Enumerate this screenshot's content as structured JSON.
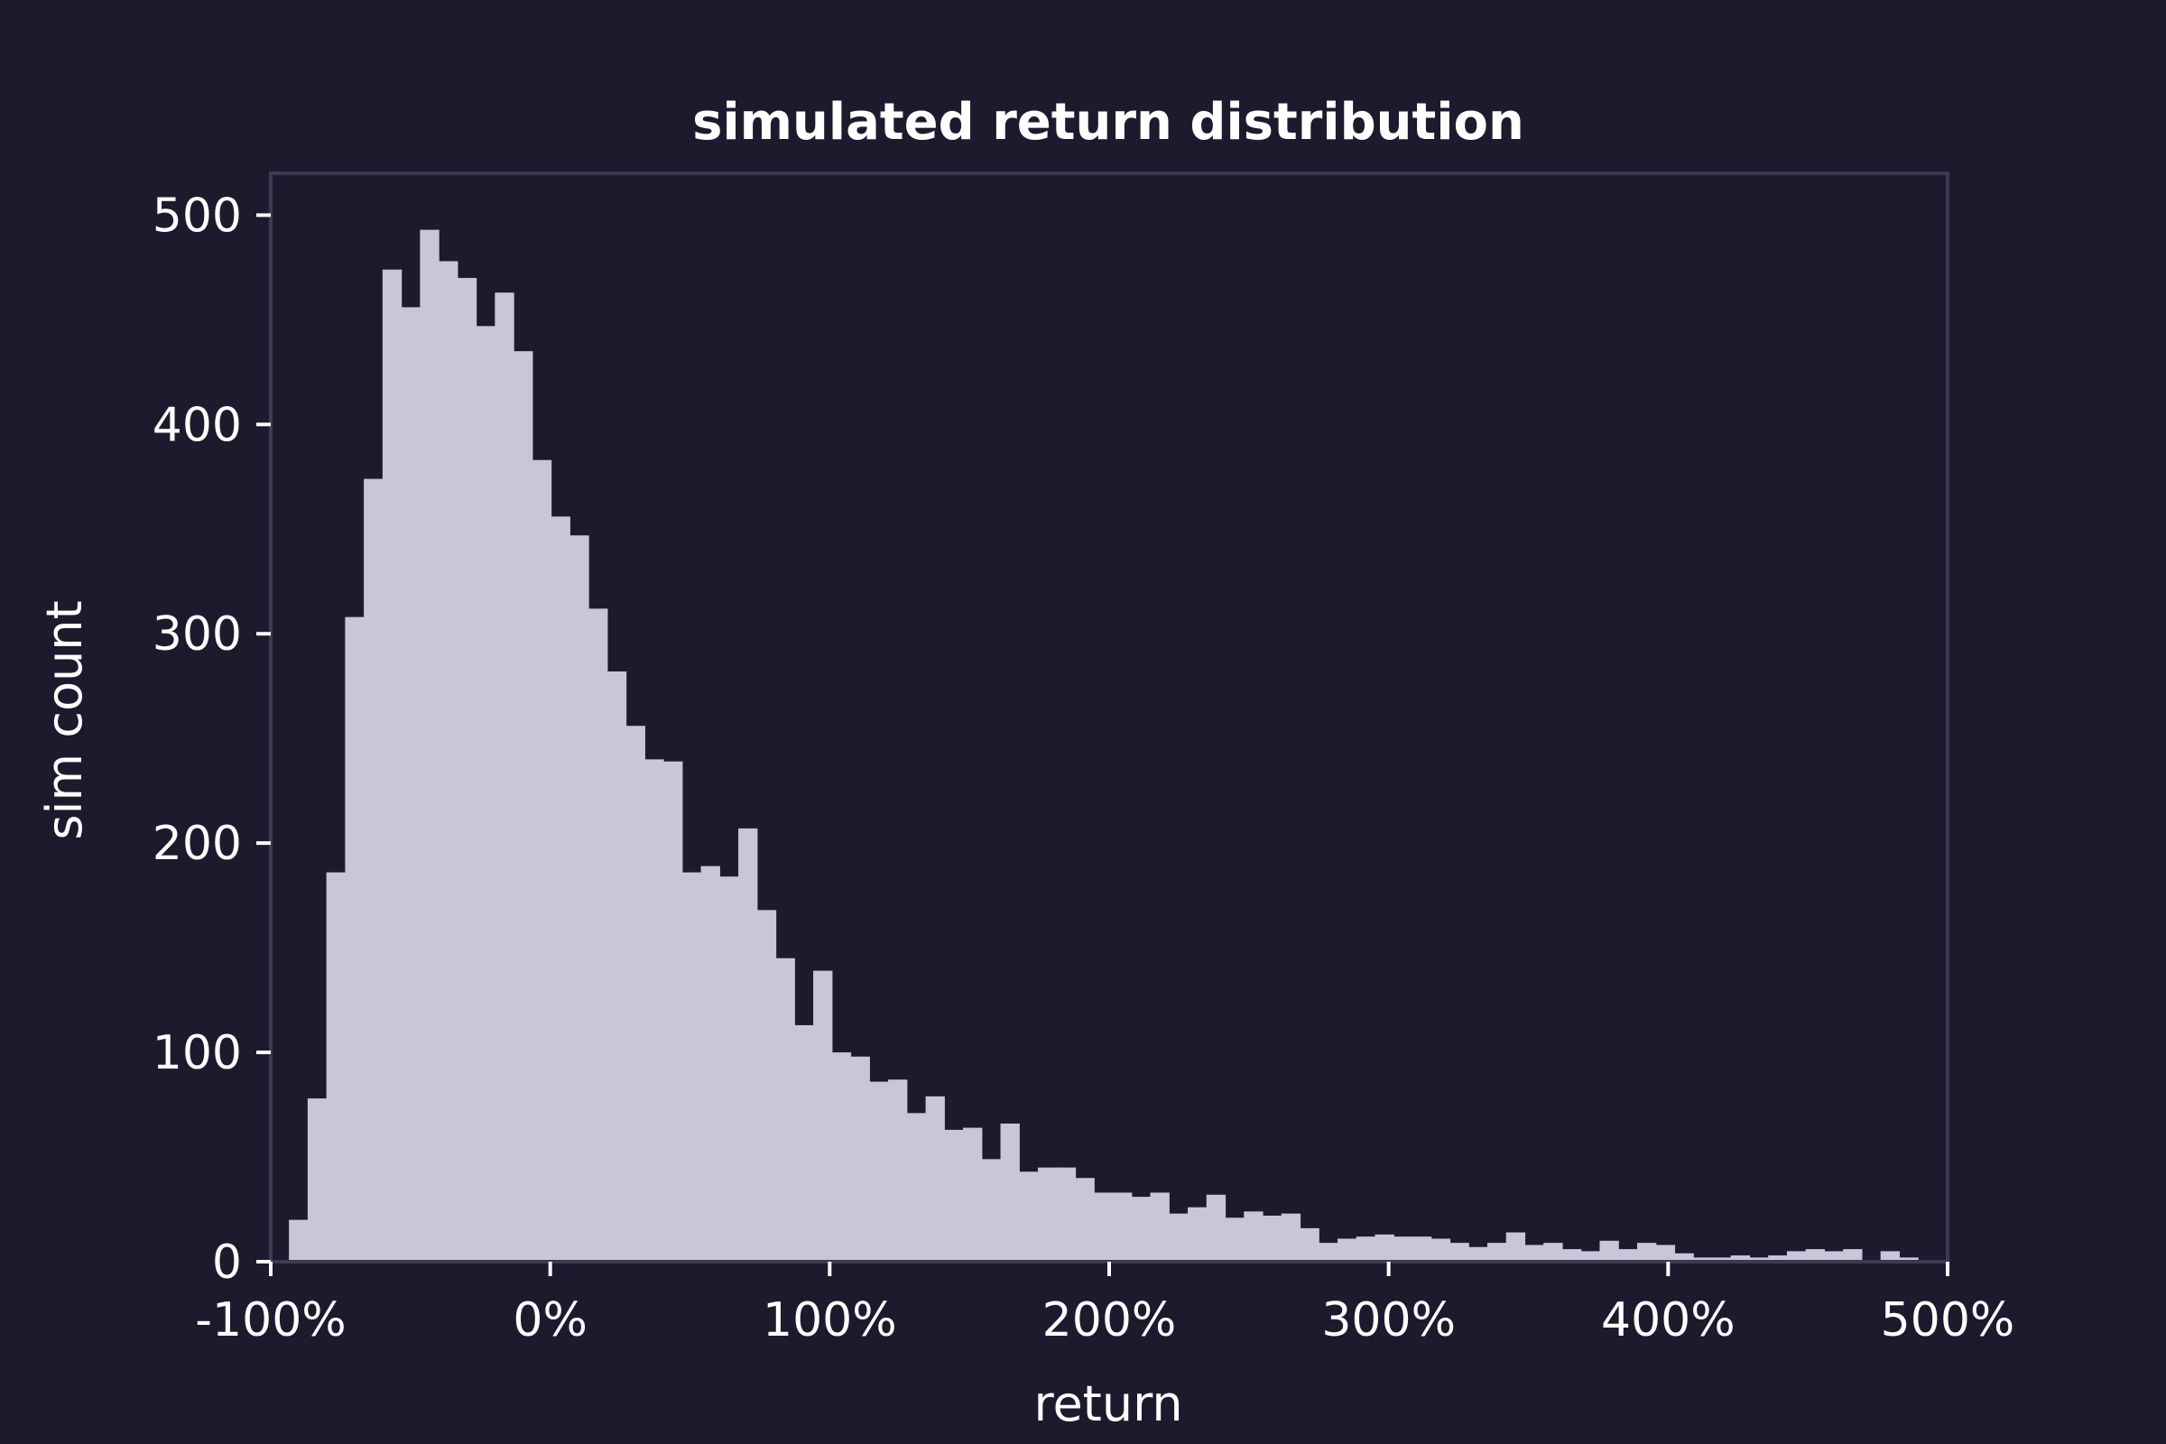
{
  "chart_data": {
    "type": "histogram",
    "title": "simulated return distribution",
    "xlabel": "return",
    "ylabel": "sim count",
    "xlim": [
      -100,
      500
    ],
    "ylim": [
      0,
      520
    ],
    "x_ticks": [
      -100,
      0,
      100,
      200,
      300,
      400,
      500
    ],
    "x_tick_labels": [
      "-100%",
      "0%",
      "100%",
      "200%",
      "300%",
      "400%",
      "500%"
    ],
    "y_ticks": [
      0,
      100,
      200,
      300,
      400,
      500
    ],
    "y_tick_labels": [
      "0",
      "100",
      "200",
      "300",
      "400",
      "500"
    ],
    "bin_start": -93.5,
    "bin_width": 6.7,
    "counts": [
      20,
      78,
      186,
      308,
      374,
      474,
      456,
      493,
      478,
      470,
      447,
      463,
      435,
      383,
      356,
      347,
      312,
      282,
      256,
      240,
      239,
      186,
      189,
      184,
      207,
      168,
      145,
      113,
      139,
      100,
      98,
      86,
      87,
      71,
      79,
      63,
      64,
      49,
      66,
      43,
      45,
      45,
      40,
      33,
      33,
      31,
      33,
      23,
      26,
      32,
      21,
      24,
      22,
      23,
      16,
      9,
      11,
      12,
      13,
      12,
      12,
      11,
      9,
      7,
      9,
      14,
      8,
      9,
      6,
      5,
      10,
      6,
      9,
      8,
      4,
      2,
      2,
      3,
      2,
      3,
      5,
      6,
      5,
      6,
      0,
      5,
      2
    ],
    "grid": false,
    "colors": {
      "background": "#1c1b2e",
      "bars": "#c8c7d8",
      "frame": "#3b3a52",
      "text": "#ffffff"
    }
  }
}
